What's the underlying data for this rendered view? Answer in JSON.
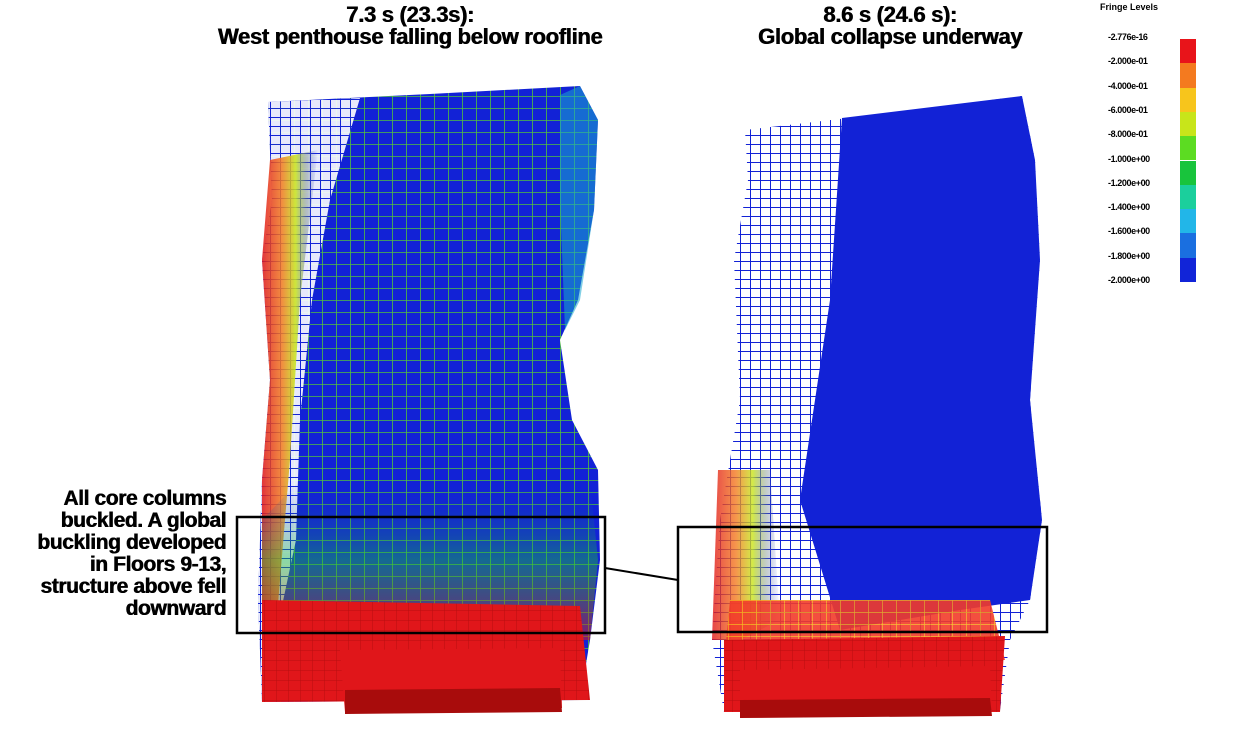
{
  "panels": [
    {
      "title_line1": "7.3 s (23.3s):",
      "title_line2": "West penthouse falling below roofline"
    },
    {
      "title_line1": "8.6 s (24.6 s):",
      "title_line2": "Global collapse underway"
    }
  ],
  "legend": {
    "title": "Fringe Levels",
    "levels": [
      "-2.776e-16",
      "-2.000e-01",
      "-4.000e-01",
      "-6.000e-01",
      "-8.000e-01",
      "-1.000e+00",
      "-1.200e+00",
      "-1.400e+00",
      "-1.600e+00",
      "-1.800e+00",
      "-2.000e+00"
    ],
    "colors": [
      "#e8141a",
      "#f47a1f",
      "#f7c51c",
      "#c8e51a",
      "#5cdc22",
      "#18c43c",
      "#1bcf9c",
      "#22b6e8",
      "#1a6fe0",
      "#1124d8"
    ]
  },
  "annotation": {
    "lines": [
      "All core columns",
      "buckled. A global",
      "buckling developed",
      "in Floors 9-13,",
      "structure above fell",
      "downward"
    ]
  },
  "colors": {
    "red": "#e0161a",
    "blue": "#1222d6",
    "dark_red": "#a80c0c",
    "outline": "#000000"
  }
}
